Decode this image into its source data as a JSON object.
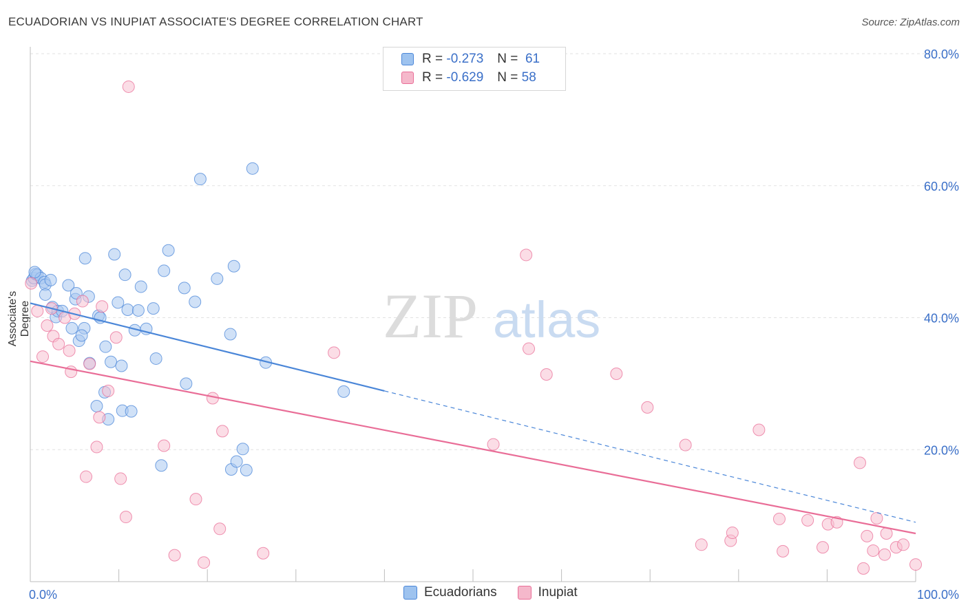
{
  "header": {
    "title": "ECUADORIAN VS INUPIAT ASSOCIATE'S DEGREE CORRELATION CHART",
    "source": "Source: ZipAtlas.com"
  },
  "watermark": {
    "zip": "ZIP",
    "atlas": "atlas"
  },
  "legend": {
    "rows": [
      {
        "r_label": "R =",
        "r_value": "-0.273",
        "n_label": "N =",
        "n_value": "61",
        "color": "#9ec3ef"
      },
      {
        "r_label": "R =",
        "r_value": "-0.629",
        "n_label": "N =",
        "n_value": "58",
        "color": "#f5b8cb"
      }
    ]
  },
  "bottom_legend": [
    {
      "label": "Ecuadorians",
      "color": "#9ec3ef"
    },
    {
      "label": "Inupiat",
      "color": "#f5b8cb"
    }
  ],
  "chart_data": {
    "type": "scatter",
    "title": "ECUADORIAN VS INUPIAT ASSOCIATE'S DEGREE CORRELATION CHART",
    "ylabel": "Associate's Degree",
    "xlabel": "",
    "xlim": [
      0,
      100
    ],
    "ylim": [
      0,
      80
    ],
    "x_tick_labels": [
      "0.0%",
      "100.0%"
    ],
    "y_ticks": [
      {
        "value": 20,
        "label": "20.0%"
      },
      {
        "value": 40,
        "label": "40.0%"
      },
      {
        "value": 60,
        "label": "60.0%"
      },
      {
        "value": 80,
        "label": "80.0%"
      }
    ],
    "grid": true,
    "series": [
      {
        "name": "Ecuadorians",
        "color": "#4a86d8",
        "fill": "#a9c9f0",
        "points": [
          [
            0.2,
            45.6
          ],
          [
            0.4,
            46.0
          ],
          [
            0.6,
            46.6
          ],
          [
            0.8,
            46.5
          ],
          [
            1.2,
            46.0
          ],
          [
            1.6,
            45.4
          ],
          [
            1.7,
            45.0
          ],
          [
            2.3,
            45.7
          ],
          [
            1.7,
            43.5
          ],
          [
            2.5,
            41.6
          ],
          [
            2.9,
            40.1
          ],
          [
            3.1,
            41.0
          ],
          [
            3.6,
            41.0
          ],
          [
            4.3,
            44.9
          ],
          [
            5.1,
            42.8
          ],
          [
            5.2,
            43.7
          ],
          [
            5.5,
            36.5
          ],
          [
            4.7,
            38.4
          ],
          [
            6.1,
            38.4
          ],
          [
            5.8,
            37.3
          ],
          [
            6.6,
            43.2
          ],
          [
            6.7,
            33.1
          ],
          [
            6.2,
            49.0
          ],
          [
            7.5,
            26.6
          ],
          [
            7.7,
            40.3
          ],
          [
            7.9,
            40.0
          ],
          [
            8.4,
            28.7
          ],
          [
            8.5,
            35.6
          ],
          [
            8.8,
            24.6
          ],
          [
            9.1,
            33.3
          ],
          [
            9.5,
            49.6
          ],
          [
            9.9,
            42.3
          ],
          [
            10.3,
            32.7
          ],
          [
            10.4,
            25.9
          ],
          [
            10.7,
            46.5
          ],
          [
            11.0,
            41.2
          ],
          [
            11.4,
            25.8
          ],
          [
            11.8,
            38.1
          ],
          [
            12.2,
            41.1
          ],
          [
            12.5,
            44.7
          ],
          [
            13.1,
            38.3
          ],
          [
            13.9,
            41.4
          ],
          [
            14.2,
            33.8
          ],
          [
            14.8,
            17.6
          ],
          [
            15.1,
            47.1
          ],
          [
            15.6,
            50.2
          ],
          [
            17.4,
            44.5
          ],
          [
            17.6,
            30.0
          ],
          [
            18.6,
            42.4
          ],
          [
            19.2,
            61.0
          ],
          [
            21.1,
            45.9
          ],
          [
            22.6,
            37.5
          ],
          [
            22.7,
            17.0
          ],
          [
            23.0,
            47.8
          ],
          [
            23.3,
            18.2
          ],
          [
            24.0,
            20.1
          ],
          [
            24.4,
            16.9
          ],
          [
            25.1,
            62.6
          ],
          [
            26.6,
            33.2
          ],
          [
            35.4,
            28.8
          ],
          [
            0.5,
            46.9
          ]
        ]
      },
      {
        "name": "Inupiat",
        "color": "#e96d97",
        "fill": "#f7c1d2",
        "points": [
          [
            0.1,
            45.2
          ],
          [
            0.8,
            41.0
          ],
          [
            1.4,
            34.1
          ],
          [
            1.9,
            38.8
          ],
          [
            2.4,
            41.4
          ],
          [
            2.6,
            37.2
          ],
          [
            3.2,
            36.0
          ],
          [
            3.9,
            40.0
          ],
          [
            4.4,
            35.0
          ],
          [
            4.6,
            31.8
          ],
          [
            5.0,
            40.6
          ],
          [
            5.9,
            42.5
          ],
          [
            6.3,
            15.9
          ],
          [
            6.7,
            33.0
          ],
          [
            7.5,
            20.4
          ],
          [
            7.8,
            24.9
          ],
          [
            8.1,
            41.7
          ],
          [
            8.8,
            28.9
          ],
          [
            9.7,
            37.0
          ],
          [
            10.2,
            15.6
          ],
          [
            10.8,
            9.8
          ],
          [
            11.1,
            75.0
          ],
          [
            15.1,
            20.6
          ],
          [
            16.3,
            4.0
          ],
          [
            18.7,
            12.5
          ],
          [
            19.6,
            2.9
          ],
          [
            20.6,
            27.8
          ],
          [
            21.4,
            8.0
          ],
          [
            21.7,
            22.8
          ],
          [
            26.3,
            4.3
          ],
          [
            34.3,
            34.7
          ],
          [
            52.3,
            20.8
          ],
          [
            56.0,
            49.5
          ],
          [
            56.3,
            35.3
          ],
          [
            58.3,
            31.4
          ],
          [
            66.2,
            31.5
          ],
          [
            69.7,
            26.4
          ],
          [
            74.0,
            20.7
          ],
          [
            75.8,
            5.6
          ],
          [
            79.1,
            6.2
          ],
          [
            79.3,
            7.4
          ],
          [
            82.3,
            23.0
          ],
          [
            84.6,
            9.5
          ],
          [
            85.0,
            4.6
          ],
          [
            87.8,
            9.3
          ],
          [
            89.5,
            5.2
          ],
          [
            90.1,
            8.7
          ],
          [
            91.1,
            9.0
          ],
          [
            93.7,
            18.0
          ],
          [
            94.1,
            2.0
          ],
          [
            94.5,
            6.9
          ],
          [
            95.2,
            4.7
          ],
          [
            95.6,
            9.6
          ],
          [
            96.5,
            4.1
          ],
          [
            96.7,
            7.3
          ],
          [
            97.8,
            5.2
          ],
          [
            98.6,
            5.6
          ],
          [
            100.0,
            2.6
          ]
        ]
      }
    ],
    "trend_lines": [
      {
        "series": "Ecuadorians",
        "x": [
          0,
          40
        ],
        "y": [
          42.2,
          28.9
        ],
        "dashed_to": {
          "x": 100,
          "y": 9.0
        }
      },
      {
        "series": "Inupiat",
        "x": [
          0,
          100
        ],
        "y": [
          33.4,
          7.3
        ]
      }
    ]
  }
}
